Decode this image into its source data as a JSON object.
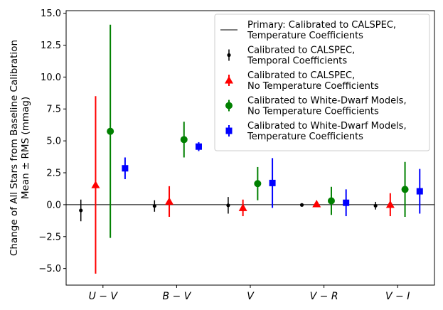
{
  "chart_data": {
    "type": "scatter",
    "ylabel_line1": "Change of All Stars from Baseline Calibration",
    "ylabel_line2": "Mean ± RMS (mmag)",
    "categories": [
      "U − V",
      "B − V",
      "V",
      "V − R",
      "V − I"
    ],
    "ylim": [
      -6.3,
      15.2
    ],
    "yticks": [
      -5.0,
      -2.5,
      0.0,
      2.5,
      5.0,
      7.5,
      10.0,
      12.5,
      15.0
    ],
    "ytick_labels": [
      "−5.0",
      "−2.5",
      "0.0",
      "2.5",
      "5.0",
      "7.5",
      "10.0",
      "12.5",
      "15.0"
    ],
    "reference_line": {
      "name_line1": "Primary: Calibrated to CALSPEC,",
      "name_line2": "Temperature Coefficients",
      "value": 0.0,
      "color": "#000000"
    },
    "legend_position": "top-right",
    "series": [
      {
        "name_line1": "Calibrated to CALSPEC,",
        "name_line2": "Temporal Coefficients",
        "marker": "circle-small",
        "color": "#000000",
        "offset": -0.3,
        "values": [
          -0.45,
          -0.1,
          -0.05,
          -0.02,
          -0.08
        ],
        "errors": [
          0.85,
          0.45,
          0.65,
          0.1,
          0.3
        ]
      },
      {
        "name_line1": "Calibrated to CALSPEC,",
        "name_line2": "No Temperature Coefficients",
        "marker": "triangle",
        "color": "#ff0000",
        "offset": -0.1,
        "values": [
          1.55,
          0.25,
          -0.25,
          0.05,
          0.0
        ],
        "errors": [
          6.95,
          1.2,
          0.65,
          0.1,
          0.9
        ]
      },
      {
        "name_line1": "Calibrated to White-Dwarf Models,",
        "name_line2": "No Temperature Coefficients",
        "marker": "circle",
        "color": "#008000",
        "offset": 0.1,
        "values": [
          5.75,
          5.1,
          1.65,
          0.3,
          1.2
        ],
        "errors": [
          8.35,
          1.4,
          1.3,
          1.1,
          2.15
        ]
      },
      {
        "name_line1": "Calibrated to White-Dwarf Models,",
        "name_line2": "Temperature Coefficients",
        "marker": "square",
        "color": "#0000ff",
        "offset": 0.3,
        "values": [
          2.85,
          4.55,
          1.7,
          0.15,
          1.05
        ],
        "errors": [
          0.85,
          0.35,
          1.95,
          1.05,
          1.75
        ]
      }
    ]
  }
}
